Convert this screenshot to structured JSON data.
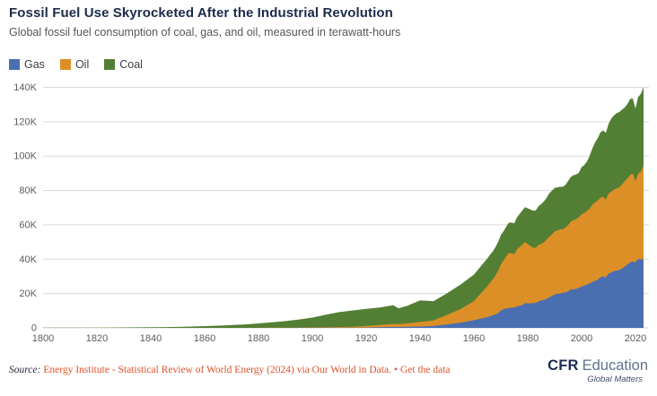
{
  "header": {
    "title": "Fossil Fuel Use Skyrocketed After the Industrial Revolution",
    "subtitle": "Global fossil fuel consumption of coal, gas, and oil, measured in terawatt-hours"
  },
  "colors": {
    "gas_blue": "#4a6fb1",
    "oil_orange": "#dd8f27",
    "coal_green": "#527f34",
    "gridline": "#d9d9d9",
    "accent_orange": "#e0512a",
    "title_navy": "#1c2b4a"
  },
  "legend": [
    {
      "label": "Gas",
      "color": "#4a6fb1"
    },
    {
      "label": "Oil",
      "color": "#dd8f27"
    },
    {
      "label": "Coal",
      "color": "#527f34"
    }
  ],
  "chart_data": {
    "type": "area",
    "stacked": true,
    "title": "Fossil Fuel Use Skyrocketed After the Industrial Revolution",
    "subtitle": "Global fossil fuel consumption of coal, gas, and oil, measured in terawatt-hours",
    "unit": "terawatt-hours",
    "xlim": [
      1800,
      2023
    ],
    "ylim": [
      0,
      140000
    ],
    "grid": "horizontal",
    "legend_position": "top-left",
    "xticks": [
      1800,
      1820,
      1840,
      1860,
      1880,
      1900,
      1920,
      1940,
      1960,
      1980,
      2000,
      2020
    ],
    "yticks": [
      {
        "v": 0,
        "label": "0"
      },
      {
        "v": 20000,
        "label": "20K"
      },
      {
        "v": 40000,
        "label": "40K"
      },
      {
        "v": 60000,
        "label": "60K"
      },
      {
        "v": 80000,
        "label": "80K"
      },
      {
        "v": 100000,
        "label": "100K"
      },
      {
        "v": 120000,
        "label": "120K"
      },
      {
        "v": 140000,
        "label": "140K"
      }
    ],
    "x": [
      1800,
      1805,
      1810,
      1815,
      1820,
      1825,
      1830,
      1835,
      1840,
      1845,
      1850,
      1855,
      1860,
      1865,
      1870,
      1875,
      1880,
      1885,
      1890,
      1895,
      1900,
      1905,
      1910,
      1915,
      1920,
      1925,
      1930,
      1932,
      1935,
      1940,
      1945,
      1950,
      1955,
      1960,
      1965,
      1966,
      1967,
      1968,
      1969,
      1970,
      1971,
      1972,
      1973,
      1974,
      1975,
      1976,
      1977,
      1978,
      1979,
      1980,
      1981,
      1982,
      1983,
      1984,
      1985,
      1986,
      1987,
      1988,
      1989,
      1990,
      1991,
      1992,
      1993,
      1994,
      1995,
      1996,
      1997,
      1998,
      1999,
      2000,
      2001,
      2002,
      2003,
      2004,
      2005,
      2006,
      2007,
      2008,
      2009,
      2010,
      2011,
      2012,
      2013,
      2014,
      2015,
      2016,
      2017,
      2018,
      2019,
      2020,
      2021,
      2022,
      2023
    ],
    "series": [
      {
        "name": "Gas",
        "color": "#4a6fb1",
        "values": [
          0,
          0,
          0,
          0,
          0,
          0,
          0,
          0,
          0,
          0,
          0,
          0,
          0,
          0,
          0,
          0,
          17,
          30,
          39,
          50,
          64,
          100,
          139,
          180,
          233,
          372,
          553,
          520,
          625,
          792,
          1100,
          2092,
          2987,
          4472,
          6306,
          6830,
          7297,
          7868,
          8599,
          10168,
          10826,
          11323,
          11599,
          11852,
          11857,
          12539,
          12805,
          13350,
          14455,
          14241,
          14410,
          14410,
          14547,
          15533,
          16056,
          16206,
          17006,
          17862,
          18536,
          19484,
          19898,
          20048,
          20424,
          20608,
          21329,
          22451,
          22424,
          22843,
          23368,
          24073,
          24533,
          25241,
          25984,
          26807,
          27385,
          28081,
          29288,
          30029,
          29368,
          31608,
          32324,
          33056,
          33395,
          33675,
          34647,
          35741,
          36902,
          38114,
          38767,
          38167,
          40135,
          39719,
          40102
        ]
      },
      {
        "name": "Oil",
        "color": "#dd8f27",
        "values": [
          0,
          0,
          0,
          0,
          0,
          0,
          0,
          0,
          0,
          0,
          0,
          0,
          6,
          9,
          11,
          20,
          33,
          60,
          89,
          130,
          181,
          290,
          397,
          511,
          889,
          1364,
          1756,
          1600,
          2000,
          2654,
          3300,
          5444,
          7900,
          11096,
          17990,
          19482,
          20954,
          22711,
          24608,
          26767,
          28371,
          30357,
          32065,
          31607,
          30988,
          33140,
          34236,
          35230,
          35526,
          34491,
          33284,
          32263,
          32091,
          32806,
          32737,
          33667,
          34276,
          35304,
          35922,
          36743,
          36762,
          37273,
          37102,
          37816,
          38553,
          39402,
          40355,
          40468,
          41181,
          42070,
          42393,
          42788,
          43486,
          44889,
          45630,
          46012,
          46510,
          46232,
          45399,
          46477,
          46968,
          47380,
          47762,
          48111,
          48889,
          49610,
          50135,
          50887,
          51050,
          47133,
          49550,
          51100,
          54564
        ]
      },
      {
        "name": "Coal",
        "color": "#527f34",
        "values": [
          97,
          110,
          128,
          140,
          153,
          200,
          264,
          310,
          356,
          450,
          569,
          800,
          1061,
          1300,
          1642,
          2000,
          2542,
          3200,
          3856,
          4700,
          5728,
          7300,
          8656,
          9500,
          9987,
          10150,
          10936,
          9300,
          10100,
          12550,
          11200,
          12603,
          14300,
          15442,
          16140,
          16300,
          16200,
          16420,
          16850,
          17065,
          17060,
          17290,
          17584,
          17800,
          18057,
          18730,
          19300,
          19780,
          20293,
          20858,
          21200,
          21500,
          21779,
          22500,
          23269,
          23800,
          24500,
          25200,
          25400,
          25281,
          25200,
          24800,
          24600,
          24800,
          25648,
          26000,
          26100,
          26000,
          25800,
          27427,
          27800,
          28800,
          30800,
          32800,
          34930,
          36400,
          38000,
          38704,
          38714,
          40571,
          42500,
          43200,
          43838,
          43900,
          43485,
          42900,
          43200,
          44152,
          43826,
          42343,
          44722,
          45310,
          45565
        ]
      }
    ]
  },
  "footer": {
    "source_label": "Source:",
    "source_link": "Energy Institute - Statistical Review of World Energy (2024) via Our World in Data.",
    "separator": "•",
    "get_data_label": "Get the data",
    "logo": {
      "cfr": "CFR",
      "education": "Education",
      "tagline": "Global Matters"
    }
  }
}
